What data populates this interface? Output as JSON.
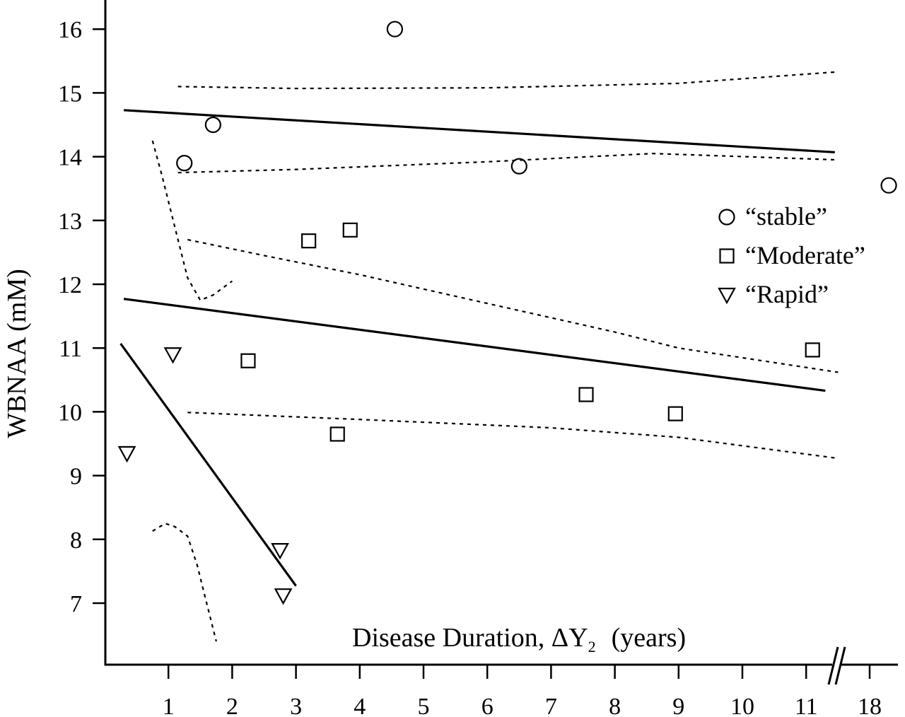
{
  "chart_data": {
    "type": "scatter",
    "title": "",
    "xlabel": "Disease Duration, ΔY",
    "xlabel_subscript": "2",
    "xlabel_units": "(years)",
    "ylabel": "WBNAA (mM)",
    "xlim": [
      0,
      18.4
    ],
    "ylim": [
      6.1,
      16.5
    ],
    "x_axis_break": "between 11 and 18",
    "x_ticks": [
      1,
      2,
      3,
      4,
      5,
      6,
      7,
      8,
      9,
      10,
      11,
      18
    ],
    "x_tick_labels": [
      "1",
      "2",
      "3",
      "4",
      "5",
      "6",
      "7",
      "8",
      "9",
      "10",
      "11",
      "18"
    ],
    "y_ticks": [
      7,
      8,
      9,
      10,
      11,
      12,
      13,
      14,
      15,
      16
    ],
    "y_tick_labels": [
      "7",
      "8",
      "9",
      "10",
      "11",
      "12",
      "13",
      "14",
      "15",
      "16"
    ],
    "grid": false,
    "legend_position": "right",
    "legend": [
      {
        "label": "“stable”",
        "marker": "circle"
      },
      {
        "label": "“Moderate”",
        "marker": "square"
      },
      {
        "label": "“Rapid”",
        "marker": "triangle-down"
      }
    ],
    "series": [
      {
        "name": "“stable”",
        "marker": "circle",
        "points": [
          [
            1.25,
            13.9
          ],
          [
            1.7,
            14.5
          ],
          [
            4.55,
            16.0
          ],
          [
            6.5,
            13.85
          ],
          [
            18.3,
            13.55
          ]
        ],
        "fit": [
          [
            0.3,
            14.73
          ],
          [
            11.45,
            14.07
          ]
        ],
        "ci_upper": [
          [
            1.15,
            15.1
          ],
          [
            3.0,
            15.07
          ],
          [
            6.0,
            15.08
          ],
          [
            9.0,
            15.15
          ],
          [
            11.5,
            15.33
          ]
        ],
        "ci_lower": [
          [
            1.15,
            13.75
          ],
          [
            3.0,
            13.8
          ],
          [
            6.0,
            13.92
          ],
          [
            8.6,
            14.05
          ],
          [
            11.5,
            13.95
          ]
        ]
      },
      {
        "name": "“Moderate”",
        "marker": "square",
        "points": [
          [
            2.25,
            10.8
          ],
          [
            3.2,
            12.68
          ],
          [
            3.85,
            12.85
          ],
          [
            3.65,
            9.65
          ],
          [
            7.55,
            10.27
          ],
          [
            8.95,
            9.97
          ],
          [
            11.1,
            10.97
          ]
        ],
        "fit": [
          [
            0.3,
            11.77
          ],
          [
            11.3,
            10.33
          ]
        ],
        "ci_upper": [
          [
            1.3,
            12.7
          ],
          [
            2.5,
            12.45
          ],
          [
            4.0,
            12.15
          ],
          [
            6.0,
            11.7
          ],
          [
            8.0,
            11.25
          ],
          [
            9.0,
            11.0
          ],
          [
            11.5,
            10.62
          ]
        ],
        "ci_lower": [
          [
            1.3,
            9.99
          ],
          [
            4.0,
            9.88
          ],
          [
            7.0,
            9.75
          ],
          [
            9.0,
            9.6
          ],
          [
            11.5,
            9.27
          ]
        ]
      },
      {
        "name": "“Rapid”",
        "marker": "triangle-down",
        "points": [
          [
            0.35,
            9.35
          ],
          [
            1.07,
            10.9
          ],
          [
            2.75,
            7.83
          ],
          [
            2.8,
            7.12
          ]
        ],
        "fit": [
          [
            0.25,
            11.07
          ],
          [
            3.0,
            7.27
          ]
        ],
        "ci_upper": [
          [
            0.75,
            14.25
          ],
          [
            0.9,
            13.7
          ],
          [
            1.1,
            12.9
          ],
          [
            1.3,
            12.1
          ],
          [
            1.5,
            11.75
          ],
          [
            1.7,
            11.83
          ],
          [
            2.0,
            12.05
          ]
        ],
        "ci_lower": [
          [
            0.75,
            8.13
          ],
          [
            0.95,
            8.25
          ],
          [
            1.1,
            8.2
          ],
          [
            1.3,
            8.05
          ],
          [
            1.45,
            7.6
          ],
          [
            1.6,
            7.0
          ],
          [
            1.75,
            6.4
          ]
        ]
      }
    ]
  }
}
